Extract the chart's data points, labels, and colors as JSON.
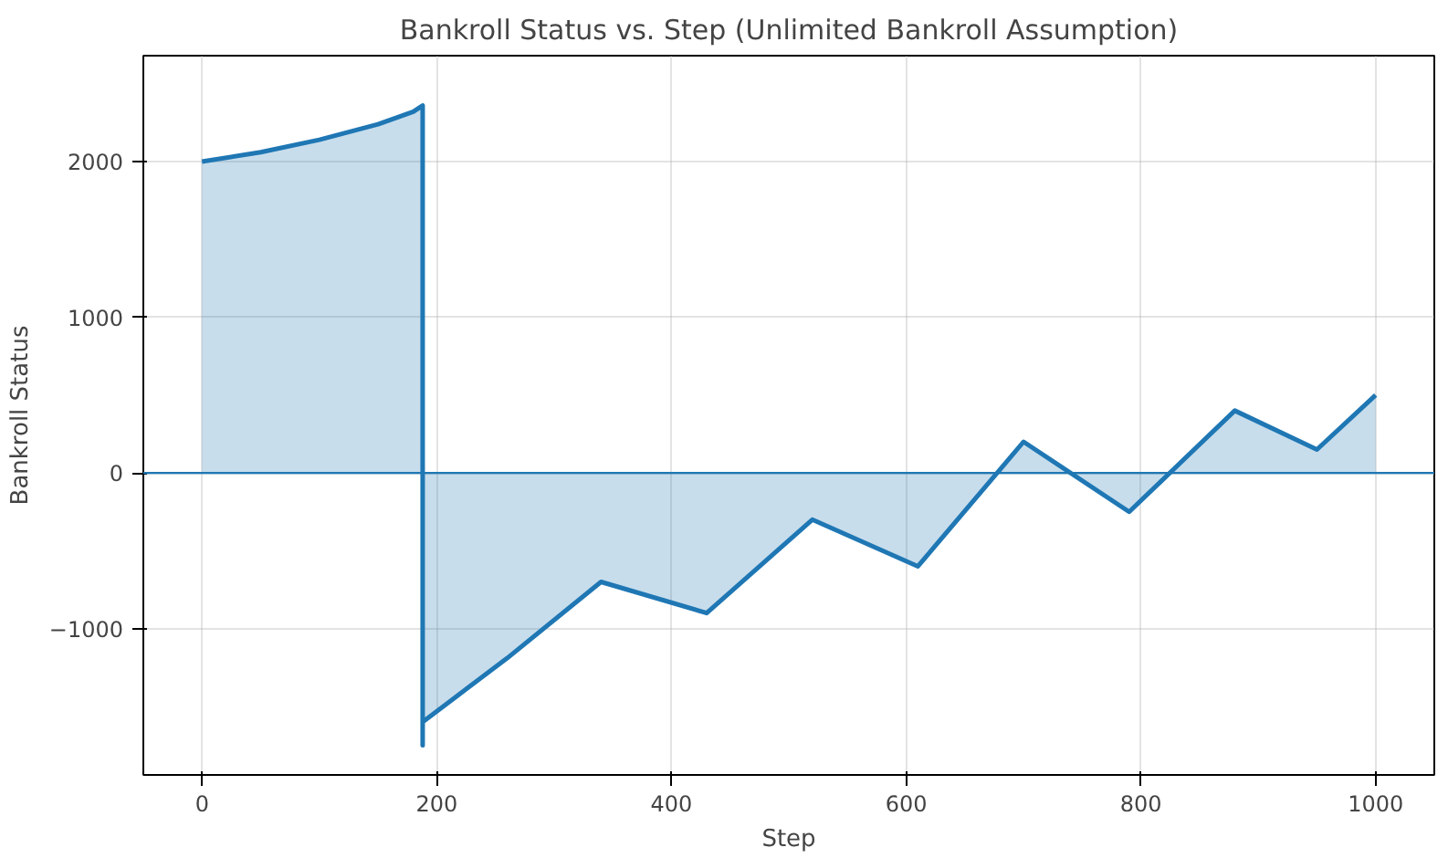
{
  "chart_data": {
    "type": "area",
    "title": "Bankroll Status vs. Step (Unlimited Bankroll Assumption)",
    "xlabel": "Step",
    "ylabel": "Bankroll Status",
    "x": [
      0,
      50,
      100,
      150,
      180,
      188,
      188,
      188,
      260,
      340,
      430,
      520,
      610,
      700,
      790,
      880,
      950,
      1000
    ],
    "series": [
      {
        "color": "#1f77b4",
        "values": [
          2000,
          2060,
          2140,
          2240,
          2320,
          2360,
          -1750,
          -1600,
          -1190,
          -700,
          -900,
          -300,
          -600,
          200,
          -250,
          400,
          150,
          500
        ]
      }
    ],
    "xlim": [
      -50,
      1050
    ],
    "ylim": [
      -1940,
      2680
    ],
    "xticks": [
      0,
      200,
      400,
      600,
      800,
      1000
    ],
    "yticks": [
      {
        "value": -1000,
        "label": "−1000"
      },
      0,
      1000,
      2000
    ],
    "ref_lines": [
      {
        "axis": "y",
        "value": 0,
        "color": "#1f77b4"
      }
    ],
    "grid": true
  }
}
